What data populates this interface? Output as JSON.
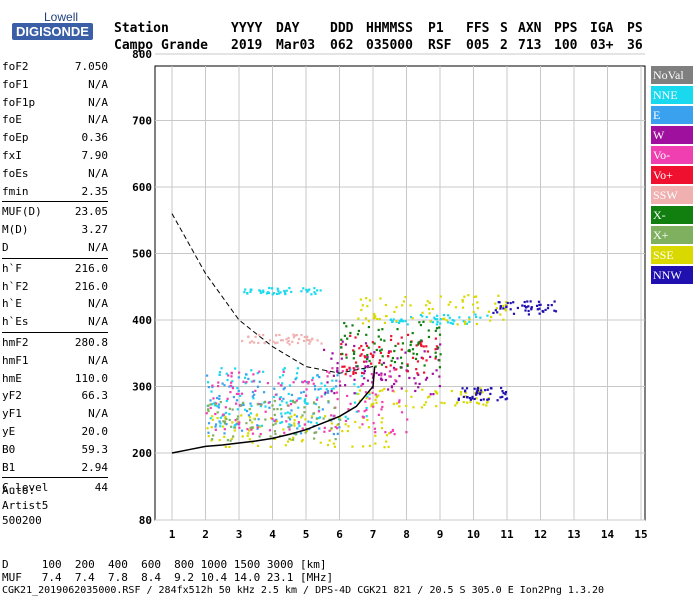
{
  "logo": {
    "line1": "Lowell",
    "line2": "DIGISONDE"
  },
  "header": {
    "labels": [
      "Station",
      "YYYY",
      "DAY",
      "DDD",
      "HHMMSS",
      "P1",
      "FFS",
      "S",
      "AXN",
      "PPS",
      "IGA",
      "PS"
    ],
    "values": [
      "Campo Grande",
      "2019",
      "Mar03",
      "062",
      "035000",
      "RSF",
      "005",
      "2",
      "713",
      "100",
      "03+",
      "36"
    ]
  },
  "params_a": [
    [
      "foF2",
      "7.050"
    ],
    [
      "foF1",
      "N/A"
    ],
    [
      "foF1p",
      "N/A"
    ],
    [
      "foE",
      "N/A"
    ],
    [
      "foEp",
      "0.36"
    ],
    [
      "fxI",
      "7.90"
    ],
    [
      "foEs",
      "N/A"
    ],
    [
      "fmin",
      "2.35"
    ]
  ],
  "params_b": [
    [
      "MUF(D)",
      "23.05"
    ],
    [
      "M(D)",
      "3.27"
    ],
    [
      "D",
      "N/A"
    ]
  ],
  "params_c": [
    [
      "h`F",
      "216.0"
    ],
    [
      "h`F2",
      "216.0"
    ],
    [
      "h`E",
      "N/A"
    ],
    [
      "h`Es",
      "N/A"
    ]
  ],
  "params_d": [
    [
      "hmF2",
      "280.8"
    ],
    [
      "hmF1",
      "N/A"
    ],
    [
      "hmE",
      "110.0"
    ],
    [
      "yF2",
      "66.3"
    ],
    [
      "yF1",
      "N/A"
    ],
    [
      "yE",
      "20.0"
    ],
    [
      "B0",
      "59.3"
    ],
    [
      "B1",
      "2.94"
    ]
  ],
  "params_e": [
    [
      "C-level",
      "44"
    ]
  ],
  "auto": [
    "Auto:",
    "Artist5",
    "500200"
  ],
  "legend": [
    {
      "label": "NoVal",
      "color": "#7f7f7f"
    },
    {
      "label": "NNE",
      "color": "#19d9ef"
    },
    {
      "label": "E",
      "color": "#3aa1ef"
    },
    {
      "label": "W",
      "color": "#a0109f"
    },
    {
      "label": "Vo-",
      "color": "#ef3fb0"
    },
    {
      "label": "Vo+",
      "color": "#ef1030"
    },
    {
      "label": "SSW",
      "color": "#f0b0b0"
    },
    {
      "label": "X-",
      "color": "#107f10"
    },
    {
      "label": "X+",
      "color": "#7fb05f"
    },
    {
      "label": "SSE",
      "color": "#d9d900"
    },
    {
      "label": "NNW",
      "color": "#2010b0"
    }
  ],
  "bottom": {
    "line1": "D     100  200  400  600  800 1000 1500 3000 [km]",
    "line2": "MUF   7.4  7.4  7.8  8.4  9.2 10.4 14.0 23.1 [MHz]",
    "line3": "CGK21_2019062035000.RSF / 284fx512h 50 kHz 2.5 km / DPS-4D CGK21 821 / 20.5 S 305.0 E Ion2Png 1.3.20"
  },
  "chart_data": {
    "type": "scatter",
    "title": "",
    "xlabel": "",
    "ylabel": "",
    "xlim": [
      1,
      15
    ],
    "ylim": [
      80,
      900
    ],
    "x_ticks": [
      1,
      2,
      3,
      4,
      5,
      6,
      7,
      8,
      9,
      10,
      11,
      12,
      13,
      14,
      15
    ],
    "y_ticks": [
      80,
      200,
      300,
      400,
      500,
      600,
      700,
      800,
      900
    ],
    "grid": true,
    "clusters": [
      {
        "series": "NNE",
        "x": [
          2,
          7
        ],
        "y": [
          240,
          330
        ]
      },
      {
        "series": "NNE",
        "x": [
          3,
          5.5
        ],
        "y": [
          440,
          450
        ]
      },
      {
        "series": "NNE",
        "x": [
          7.5,
          10.5
        ],
        "y": [
          395,
          410
        ]
      },
      {
        "series": "E",
        "x": [
          2,
          6
        ],
        "y": [
          230,
          320
        ]
      },
      {
        "series": "SSW",
        "x": [
          3,
          5.5
        ],
        "y": [
          365,
          380
        ]
      },
      {
        "series": "SSE",
        "x": [
          2,
          7.5
        ],
        "y": [
          210,
          260
        ]
      },
      {
        "series": "SSE",
        "x": [
          6.5,
          10.5
        ],
        "y": [
          270,
          300
        ]
      },
      {
        "series": "SSE",
        "x": [
          6.5,
          11
        ],
        "y": [
          395,
          440
        ]
      },
      {
        "series": "W",
        "x": [
          5.5,
          9
        ],
        "y": [
          290,
          370
        ]
      },
      {
        "series": "Vo-",
        "x": [
          2,
          8
        ],
        "y": [
          230,
          330
        ]
      },
      {
        "series": "Vo+",
        "x": [
          6,
          9
        ],
        "y": [
          320,
          380
        ]
      },
      {
        "series": "X-",
        "x": [
          6,
          9
        ],
        "y": [
          330,
          400
        ]
      },
      {
        "series": "X+",
        "x": [
          2,
          6
        ],
        "y": [
          220,
          280
        ]
      },
      {
        "series": "NNW",
        "x": [
          10.5,
          12.5
        ],
        "y": [
          410,
          430
        ]
      },
      {
        "series": "NNW",
        "x": [
          9.5,
          11
        ],
        "y": [
          280,
          300
        ]
      }
    ],
    "profile": {
      "x": [
        1,
        1.5,
        2,
        2.5,
        3,
        3.5,
        4,
        4.5,
        5,
        5.5,
        6,
        6.5,
        7,
        7.05
      ],
      "y": [
        200,
        205,
        210,
        212,
        215,
        218,
        222,
        228,
        235,
        245,
        255,
        270,
        300,
        330
      ]
    },
    "dashed_curve": {
      "x": [
        1,
        2,
        3,
        4,
        5,
        6,
        7
      ],
      "y": [
        560,
        470,
        400,
        360,
        330,
        320,
        330
      ]
    }
  }
}
